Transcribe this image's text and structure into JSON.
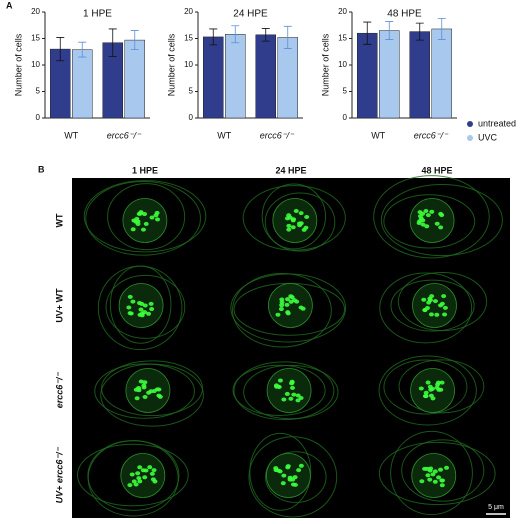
{
  "panel_a_label": "A",
  "chart_data": [
    {
      "type": "bar",
      "title": "1 HPE",
      "y_label": "Number of cells",
      "categories": [
        "WT",
        "ercc6⁻/⁻"
      ],
      "series": [
        {
          "name": "untreated",
          "color": "#2f3d8c",
          "values": [
            13,
            14.2
          ],
          "errors": [
            2.2,
            2.6
          ]
        },
        {
          "name": "UVC",
          "color": "#a8c8ee",
          "values": [
            12.9,
            14.7
          ],
          "errors": [
            1.4,
            1.8
          ]
        }
      ],
      "ylim": [
        0,
        20
      ],
      "yticks": [
        0,
        5,
        10,
        15,
        20
      ]
    },
    {
      "type": "bar",
      "title": "24 HPE",
      "y_label": "Number of cells",
      "categories": [
        "WT",
        "ercc6⁻/⁻"
      ],
      "series": [
        {
          "name": "untreated",
          "color": "#2f3d8c",
          "values": [
            15.3,
            15.7
          ],
          "errors": [
            1.5,
            1.2
          ]
        },
        {
          "name": "UVC",
          "color": "#a8c8ee",
          "values": [
            15.8,
            15.2
          ],
          "errors": [
            1.6,
            2.1
          ]
        }
      ],
      "ylim": [
        0,
        20
      ],
      "yticks": [
        0,
        5,
        10,
        15,
        20
      ]
    },
    {
      "type": "bar",
      "title": "48 HPE",
      "y_label": "Number of cells",
      "categories": [
        "WT",
        "ercc6⁻/⁻"
      ],
      "series": [
        {
          "name": "untreated",
          "color": "#2f3d8c",
          "values": [
            16,
            16.3
          ],
          "errors": [
            2.1,
            1.6
          ]
        },
        {
          "name": "UVC",
          "color": "#a8c8ee",
          "values": [
            16.5,
            16.8
          ],
          "errors": [
            1.7,
            2.0
          ]
        }
      ],
      "ylim": [
        0,
        20
      ],
      "yticks": [
        0,
        5,
        10,
        15,
        20
      ]
    }
  ],
  "panel_b": {
    "label": "B",
    "columns": [
      "1 HPE",
      "24 HPE",
      "48 HPE"
    ],
    "rows": [
      "WT",
      "UV+ WT",
      "ercc6⁻/⁻",
      "UV+ ercc6⁻/⁻"
    ],
    "scale_bar": "5 μm"
  }
}
